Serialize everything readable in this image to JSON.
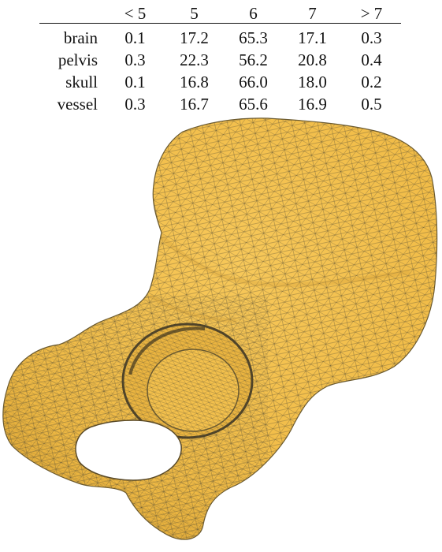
{
  "table": {
    "corner": "",
    "columns": [
      "< 5",
      "5",
      "6",
      "7",
      "> 7"
    ],
    "rows": [
      {
        "name": "brain",
        "values": [
          "0.1",
          "17.2",
          "65.3",
          "17.1",
          "0.3"
        ]
      },
      {
        "name": "pelvis",
        "values": [
          "0.3",
          "22.3",
          "56.2",
          "20.8",
          "0.4"
        ]
      },
      {
        "name": "skull",
        "values": [
          "0.1",
          "16.8",
          "66.0",
          "18.0",
          "0.2"
        ]
      },
      {
        "name": "vessel",
        "values": [
          "0.3",
          "16.7",
          "65.6",
          "16.9",
          "0.5"
        ]
      }
    ]
  },
  "figure": {
    "subject": "pelvis-triangle-mesh",
    "fill_color": "#F3C04C",
    "shade_color": "#D9A232",
    "edge_color": "#5a5036",
    "background": "#ffffff"
  }
}
